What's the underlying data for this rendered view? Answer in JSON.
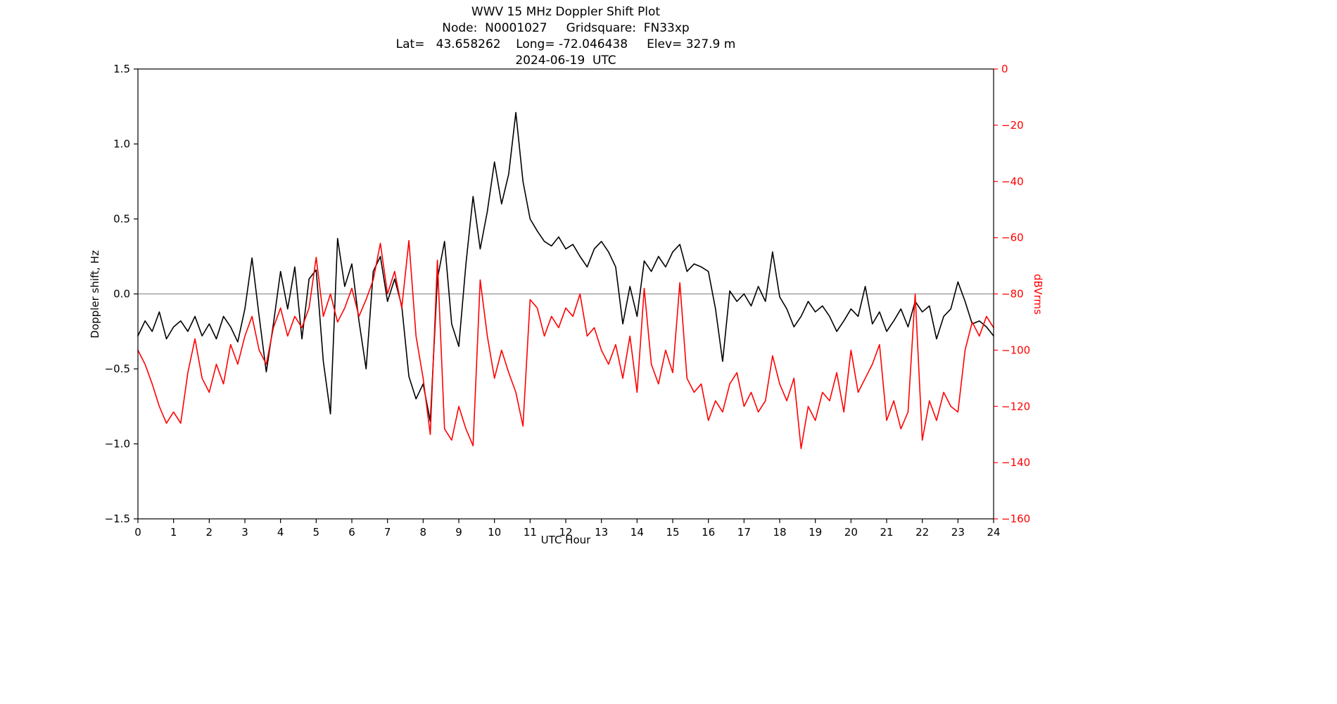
{
  "header": {
    "title": "WWV 15 MHz Doppler Shift Plot",
    "node_line": "Node:  N0001027     Gridsquare:  FN33xp",
    "position_line": "Lat=   43.658262    Long= -72.046438     Elev= 327.9 m",
    "date_line": "2024-06-19  UTC"
  },
  "chart_data": {
    "type": "line",
    "title": "WWV 15 MHz Doppler Shift Plot",
    "subtitle_lines": [
      "Node:  N0001027     Gridsquare:  FN33xp",
      "Lat=   43.658262    Long= -72.046438     Elev= 327.9 m",
      "2024-06-19  UTC"
    ],
    "xlabel": "UTC Hour",
    "ylabel_left": "Doppler shift, Hz",
    "ylabel_right": "dBVrms",
    "xlim": [
      0,
      24
    ],
    "ylim_left": [
      -1.5,
      1.5
    ],
    "ylim_right": [
      -160,
      0
    ],
    "x_ticks": [
      0,
      1,
      2,
      3,
      4,
      5,
      6,
      7,
      8,
      9,
      10,
      11,
      12,
      13,
      14,
      15,
      16,
      17,
      18,
      19,
      20,
      21,
      22,
      23,
      24
    ],
    "y_ticks_left": [
      -1.5,
      -1.0,
      -0.5,
      0.0,
      0.5,
      1.0,
      1.5
    ],
    "y_ticks_right": [
      0,
      -20,
      -40,
      -60,
      -80,
      -100,
      -120,
      -140,
      -160
    ],
    "grid": false,
    "zero_line_left_axis": 0.0,
    "zero_line_color": "#808080",
    "legend": "none",
    "x_step": 0.2,
    "colors": {
      "doppler": "#000000",
      "dbvrms": "#ff0000",
      "right_axis_text": "#ff0000"
    },
    "series": [
      {
        "name": "Doppler shift (Hz)",
        "axis": "left",
        "color": "#000000",
        "values": [
          -0.28,
          -0.18,
          -0.25,
          -0.12,
          -0.3,
          -0.22,
          -0.18,
          -0.25,
          -0.15,
          -0.28,
          -0.2,
          -0.3,
          -0.15,
          -0.22,
          -0.32,
          -0.1,
          0.24,
          -0.15,
          -0.52,
          -0.2,
          0.15,
          -0.1,
          0.18,
          -0.3,
          0.1,
          0.16,
          -0.45,
          -0.8,
          0.37,
          0.05,
          0.2,
          -0.18,
          -0.5,
          0.15,
          0.25,
          -0.05,
          0.1,
          -0.08,
          -0.55,
          -0.7,
          -0.6,
          -0.85,
          0.1,
          0.35,
          -0.2,
          -0.35,
          0.2,
          0.65,
          0.3,
          0.55,
          0.88,
          0.6,
          0.8,
          1.21,
          0.75,
          0.5,
          0.42,
          0.35,
          0.32,
          0.38,
          0.3,
          0.33,
          0.25,
          0.18,
          0.3,
          0.35,
          0.28,
          0.18,
          -0.2,
          0.05,
          -0.15,
          0.22,
          0.15,
          0.25,
          0.18,
          0.28,
          0.33,
          0.15,
          0.2,
          0.18,
          0.15,
          -0.1,
          -0.45,
          0.02,
          -0.05,
          0.0,
          -0.08,
          0.05,
          -0.05,
          0.28,
          -0.02,
          -0.1,
          -0.22,
          -0.15,
          -0.05,
          -0.12,
          -0.08,
          -0.15,
          -0.25,
          -0.18,
          -0.1,
          -0.15,
          0.05,
          -0.2,
          -0.12,
          -0.25,
          -0.18,
          -0.1,
          -0.22,
          -0.05,
          -0.12,
          -0.08,
          -0.3,
          -0.15,
          -0.1,
          0.08,
          -0.05,
          -0.2,
          -0.18,
          -0.22,
          -0.28
        ]
      },
      {
        "name": "dBVrms",
        "axis": "right",
        "color": "#ff0000",
        "values": [
          -100,
          -105,
          -112,
          -120,
          -126,
          -122,
          -126,
          -108,
          -96,
          -110,
          -115,
          -105,
          -112,
          -98,
          -105,
          -95,
          -88,
          -100,
          -105,
          -92,
          -85,
          -95,
          -88,
          -92,
          -85,
          -67,
          -88,
          -80,
          -90,
          -85,
          -78,
          -88,
          -82,
          -75,
          -62,
          -80,
          -72,
          -85,
          -61,
          -95,
          -110,
          -130,
          -68,
          -128,
          -132,
          -120,
          -128,
          -134,
          -75,
          -95,
          -110,
          -100,
          -108,
          -115,
          -127,
          -82,
          -85,
          -95,
          -88,
          -92,
          -85,
          -88,
          -80,
          -95,
          -92,
          -100,
          -105,
          -98,
          -110,
          -95,
          -115,
          -78,
          -105,
          -112,
          -100,
          -108,
          -76,
          -110,
          -115,
          -112,
          -125,
          -118,
          -122,
          -112,
          -108,
          -120,
          -115,
          -122,
          -118,
          -102,
          -112,
          -118,
          -110,
          -135,
          -120,
          -125,
          -115,
          -118,
          -108,
          -122,
          -100,
          -115,
          -110,
          -105,
          -98,
          -125,
          -118,
          -128,
          -122,
          -80,
          -132,
          -118,
          -125,
          -115,
          -120,
          -122,
          -100,
          -90,
          -95,
          -88,
          -92
        ]
      }
    ]
  }
}
